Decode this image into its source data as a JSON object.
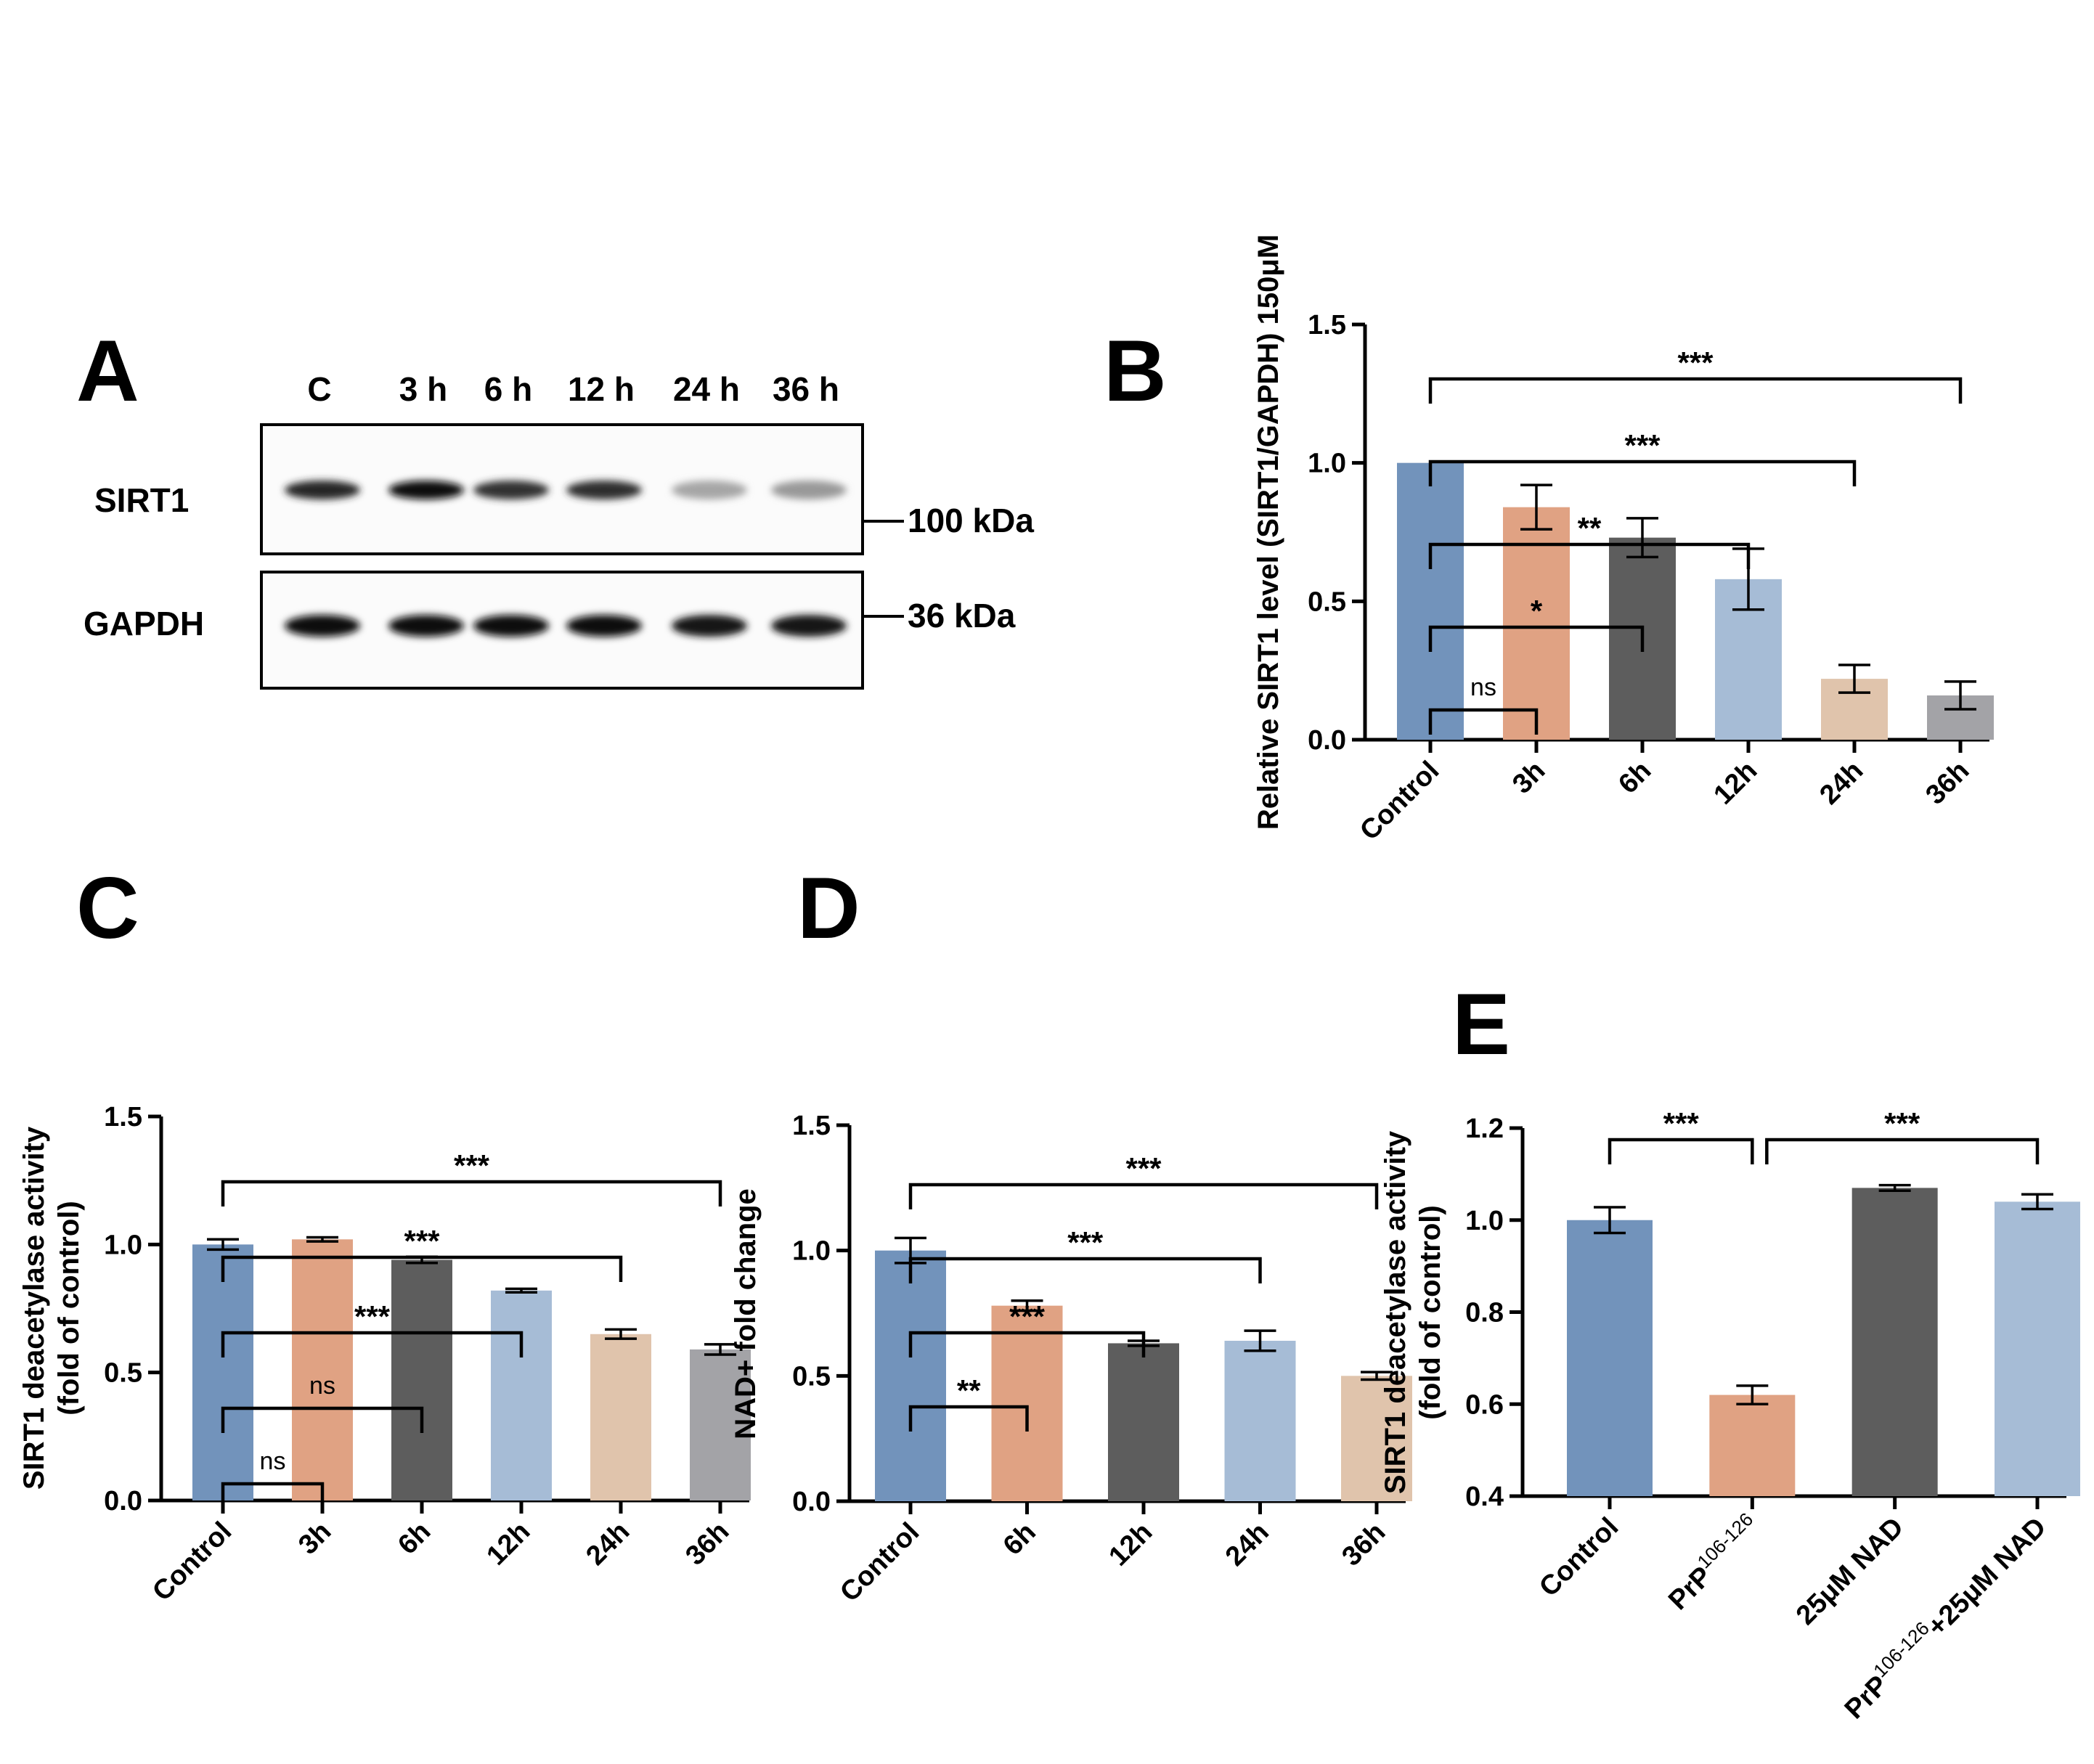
{
  "panel_labels": {
    "A": "A",
    "B": "B",
    "C": "C",
    "D": "D",
    "E": "E"
  },
  "western_blot": {
    "lanes": [
      "C",
      "3 h",
      "6 h",
      "12 h",
      "24 h",
      "36 h"
    ],
    "rows": [
      {
        "name": "SIRT1",
        "size": "100 kDa",
        "intensity": [
          0.85,
          0.95,
          0.8,
          0.82,
          0.35,
          0.4
        ]
      },
      {
        "name": "GAPDH",
        "size": "36 kDa",
        "intensity": [
          0.95,
          0.95,
          0.95,
          0.95,
          0.9,
          0.92
        ]
      }
    ]
  },
  "chart_data": [
    {
      "id": "B",
      "type": "bar",
      "title": "",
      "xlabel": "",
      "ylabel": "Relative SIRT1 level (SIRT1/GAPDH) 150μM",
      "categories": [
        "Control",
        "3h",
        "6h",
        "12h",
        "24h",
        "36h"
      ],
      "values": [
        1.0,
        0.84,
        0.73,
        0.58,
        0.22,
        0.16
      ],
      "errors": [
        0,
        0.08,
        0.07,
        0.11,
        0.05,
        0.05
      ],
      "colors": [
        "#7293bb",
        "#e0a283",
        "#5d5d5d",
        "#a6bcd6",
        "#e0c4ac",
        "#a3a3a7"
      ],
      "ylim": [
        0,
        1.5
      ],
      "yticks": [
        0.0,
        0.5,
        1.0,
        1.5
      ],
      "ytick_labels": [
        "0.0",
        "0.5",
        "1.0",
        "1.5"
      ],
      "significance": [
        {
          "from": 0,
          "to": 1,
          "label": "ns"
        },
        {
          "from": 0,
          "to": 2,
          "label": "*"
        },
        {
          "from": 0,
          "to": 3,
          "label": "**"
        },
        {
          "from": 0,
          "to": 4,
          "label": "***"
        },
        {
          "from": 0,
          "to": 5,
          "label": "***"
        }
      ]
    },
    {
      "id": "C",
      "type": "bar",
      "title": "",
      "xlabel": "",
      "ylabel": "SIRT1 deacetylase activity",
      "ylabel2": "(fold of control)",
      "categories": [
        "Control",
        "3h",
        "6h",
        "12h",
        "24h",
        "36h"
      ],
      "values": [
        1.0,
        1.02,
        0.94,
        0.82,
        0.65,
        0.59
      ],
      "errors": [
        0.02,
        0.008,
        0.012,
        0.007,
        0.018,
        0.02
      ],
      "colors": [
        "#7293bb",
        "#e0a283",
        "#5d5d5d",
        "#a6bcd6",
        "#e0c4ac",
        "#a3a3a7"
      ],
      "ylim": [
        0,
        1.5
      ],
      "yticks": [
        0.0,
        0.5,
        1.0,
        1.5
      ],
      "ytick_labels": [
        "0.0",
        "0.5",
        "1.0",
        "1.5"
      ],
      "significance": [
        {
          "from": 0,
          "to": 1,
          "label": "ns"
        },
        {
          "from": 0,
          "to": 2,
          "label": "ns"
        },
        {
          "from": 0,
          "to": 3,
          "label": "***"
        },
        {
          "from": 0,
          "to": 4,
          "label": "***"
        },
        {
          "from": 0,
          "to": 5,
          "label": "***"
        }
      ]
    },
    {
      "id": "D",
      "type": "bar",
      "title": "",
      "xlabel": "",
      "ylabel": "NAD+ fold change",
      "categories": [
        "Control",
        "6h",
        "12h",
        "24h",
        "36h"
      ],
      "values": [
        1.0,
        0.78,
        0.63,
        0.64,
        0.5
      ],
      "errors": [
        0.05,
        0.02,
        0.01,
        0.04,
        0.015
      ],
      "colors": [
        "#7293bb",
        "#e0a283",
        "#5d5d5d",
        "#a6bcd6",
        "#e0c4ac"
      ],
      "ylim": [
        0,
        1.5
      ],
      "yticks": [
        0.0,
        0.5,
        1.0,
        1.5
      ],
      "ytick_labels": [
        "0.0",
        "0.5",
        "1.0",
        "1.5"
      ],
      "significance": [
        {
          "from": 0,
          "to": 1,
          "label": "**"
        },
        {
          "from": 0,
          "to": 2,
          "label": "***"
        },
        {
          "from": 0,
          "to": 3,
          "label": "***"
        },
        {
          "from": 0,
          "to": 4,
          "label": "***"
        }
      ]
    },
    {
      "id": "E",
      "type": "bar",
      "title": "",
      "xlabel": "",
      "ylabel": "SIRT1 deacetylase activity",
      "ylabel2": "(fold of control)",
      "categories": [
        "Control",
        "PrP106-126",
        "25μM NAD",
        "PrP106-126+25μM NAD"
      ],
      "category_parts": [
        {
          "main": "Control",
          "sup": "",
          "tail": ""
        },
        {
          "main": "PrP",
          "sup": "106-126",
          "tail": ""
        },
        {
          "main": "25μM NAD",
          "sup": "",
          "tail": ""
        },
        {
          "main": "PrP",
          "sup": "106-126",
          "tail": "+25μM NAD"
        }
      ],
      "values": [
        1.0,
        0.62,
        1.07,
        1.04
      ],
      "errors": [
        0.028,
        0.02,
        0.006,
        0.016
      ],
      "colors": [
        "#7293bb",
        "#e0a283",
        "#5d5d5d",
        "#a6bcd6"
      ],
      "ylim": [
        0.4,
        1.2
      ],
      "yticks": [
        0.4,
        0.6,
        0.8,
        1.0,
        1.2
      ],
      "ytick_labels": [
        "0.4",
        "0.6",
        "0.8",
        "1.0",
        "1.2"
      ],
      "significance": [
        {
          "from": 0,
          "to": 1,
          "label": "***"
        },
        {
          "from": 1,
          "to": 3,
          "label": "***"
        }
      ]
    }
  ]
}
